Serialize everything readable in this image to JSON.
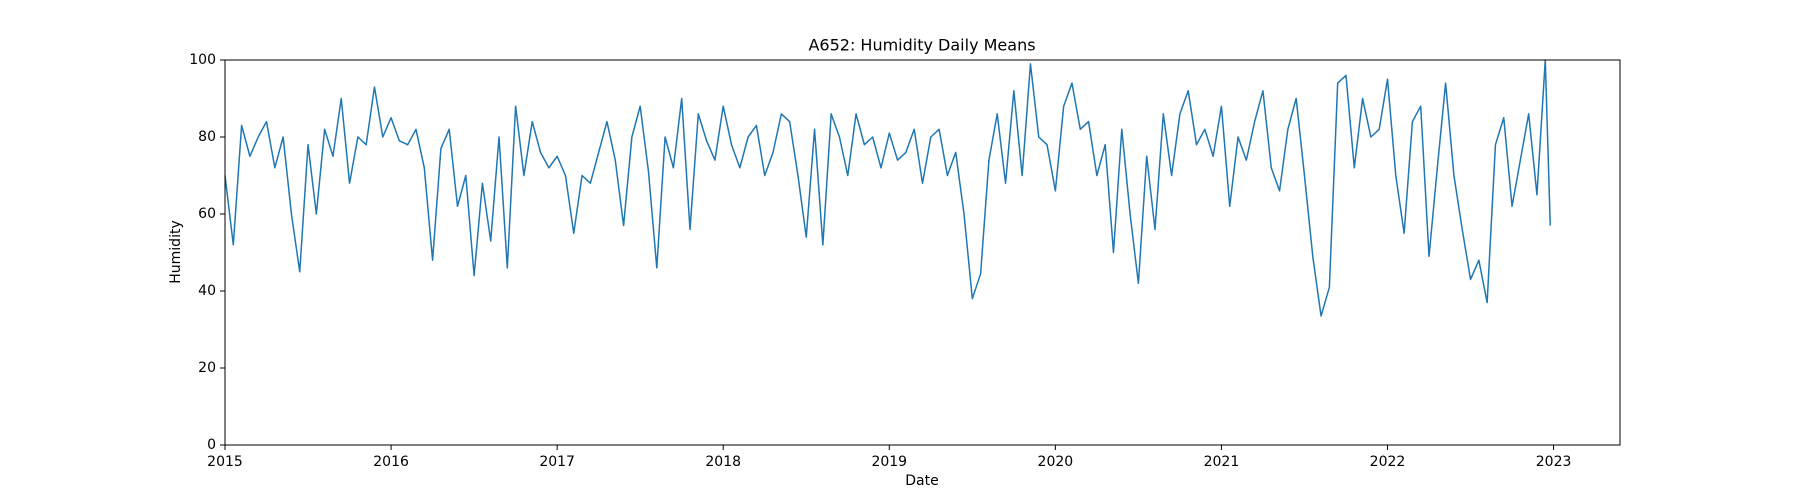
{
  "chart_data": {
    "type": "line",
    "title": "A652: Humidity Daily Means",
    "x_label": "Date",
    "y_label": "Humidity",
    "x": [
      2015.0,
      2015.05,
      2015.1,
      2015.15,
      2015.2,
      2015.25,
      2015.3,
      2015.35,
      2015.4,
      2015.45,
      2015.5,
      2015.55,
      2015.6,
      2015.65,
      2015.7,
      2015.75,
      2015.8,
      2015.85,
      2015.9,
      2015.95,
      2016.0,
      2016.05,
      2016.1,
      2016.15,
      2016.2,
      2016.25,
      2016.3,
      2016.35,
      2016.4,
      2016.45,
      2016.5,
      2016.55,
      2016.6,
      2016.65,
      2016.7,
      2016.75,
      2016.8,
      2016.85,
      2016.9,
      2016.95,
      2017.0,
      2017.05,
      2017.1,
      2017.15,
      2017.2,
      2017.25,
      2017.3,
      2017.35,
      2017.4,
      2017.45,
      2017.5,
      2017.55,
      2017.6,
      2017.65,
      2017.7,
      2017.75,
      2017.8,
      2017.85,
      2017.9,
      2017.95,
      2018.0,
      2018.05,
      2018.1,
      2018.15,
      2018.2,
      2018.25,
      2018.3,
      2018.35,
      2018.4,
      2018.45,
      2018.5,
      2018.55,
      2018.6,
      2018.65,
      2018.7,
      2018.75,
      2018.8,
      2018.85,
      2018.9,
      2018.95,
      2019.0,
      2019.05,
      2019.1,
      2019.15,
      2019.2,
      2019.25,
      2019.3,
      2019.35,
      2019.4,
      2019.45,
      2019.5,
      2019.55,
      2019.6,
      2019.65,
      2019.7,
      2019.75,
      2019.8,
      2019.85,
      2019.9,
      2019.95,
      2020.0,
      2020.05,
      2020.1,
      2020.15,
      2020.2,
      2020.25,
      2020.3,
      2020.35,
      2020.4,
      2020.45,
      2020.5,
      2020.55,
      2020.6,
      2020.65,
      2020.7,
      2020.75,
      2020.8,
      2020.85,
      2020.9,
      2020.95,
      2021.0,
      2021.05,
      2021.1,
      2021.15,
      2021.2,
      2021.25,
      2021.3,
      2021.35,
      2021.4,
      2021.45,
      2021.5,
      2021.55,
      2021.6,
      2021.65,
      2021.7,
      2021.75,
      2021.8,
      2021.85,
      2021.9,
      2021.95,
      2022.0,
      2022.05,
      2022.1,
      2022.15,
      2022.2,
      2022.25,
      2022.3,
      2022.35,
      2022.4,
      2022.45,
      2022.5,
      2022.55,
      2022.6,
      2022.65,
      2022.7,
      2022.75,
      2022.8,
      2022.85,
      2022.9,
      2022.95,
      2022.98
    ],
    "series": [
      {
        "name": "Humidity",
        "color": "#1f77b4",
        "values": [
          70,
          52,
          83,
          75,
          80,
          84,
          72,
          80,
          60,
          45,
          78,
          60,
          82,
          75,
          90,
          68,
          80,
          78,
          93,
          80,
          85,
          79,
          78,
          82,
          72,
          48,
          77,
          82,
          62,
          70,
          44,
          68,
          53,
          80,
          46,
          88,
          70,
          84,
          76,
          72,
          75,
          70,
          55,
          70,
          68,
          76,
          84,
          74,
          57,
          80,
          88,
          71,
          46,
          80,
          72,
          90,
          56,
          86,
          79,
          74,
          88,
          78,
          72,
          80,
          83,
          70,
          76,
          86,
          84,
          70,
          54,
          82,
          52,
          86,
          80,
          70,
          86,
          78,
          80,
          72,
          81,
          74,
          76,
          82,
          68,
          80,
          82,
          70,
          76,
          60,
          38,
          44.5,
          74,
          86,
          68,
          92,
          70,
          99,
          80,
          78,
          66,
          88,
          94,
          82,
          84,
          70,
          78,
          50,
          82,
          60,
          42,
          75,
          56,
          86,
          70,
          86,
          92,
          78,
          82,
          75,
          88,
          62,
          80,
          74,
          84,
          92,
          72,
          66,
          82,
          90,
          70,
          49,
          33.5,
          41,
          94,
          96,
          72,
          90,
          80,
          82,
          95,
          70,
          55,
          84,
          88,
          49,
          72,
          94,
          70,
          56,
          43,
          48,
          37,
          78,
          85,
          62,
          74,
          86,
          65,
          100,
          57
        ]
      }
    ],
    "xlim": [
      2015,
      2023.4
    ],
    "xticks": [
      2015,
      2016,
      2017,
      2018,
      2019,
      2020,
      2021,
      2022,
      2023
    ],
    "ylim": [
      0,
      100
    ],
    "yticks": [
      0,
      20,
      40,
      60,
      80,
      100
    ],
    "grid": false
  }
}
